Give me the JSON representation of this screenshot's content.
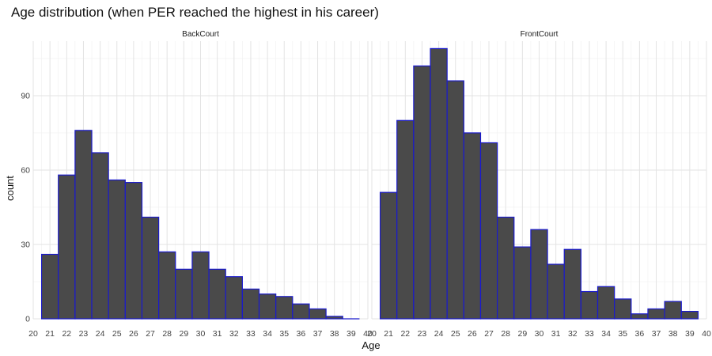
{
  "chart_data": {
    "type": "bar",
    "title": "Age distribution (when PER reached the highest in his career)",
    "xlabel": "Age",
    "ylabel": "count",
    "ylim": [
      0,
      112
    ],
    "yticks": [
      0,
      30,
      60,
      90
    ],
    "xlim": [
      20,
      40
    ],
    "xticks": [
      "20",
      "21",
      "22",
      "23",
      "24",
      "25",
      "26",
      "27",
      "28",
      "29",
      "30",
      "31",
      "32",
      "33",
      "34",
      "35",
      "36",
      "37",
      "38",
      "39",
      "40"
    ],
    "grid": true,
    "bar_fill": "#4a4a4a",
    "bar_outline": "#1a1acc",
    "panels": [
      {
        "name": "BackCourt",
        "bins": [
          {
            "x0": 20.5,
            "x1": 21.5,
            "count": 26
          },
          {
            "x0": 21.5,
            "x1": 22.5,
            "count": 58
          },
          {
            "x0": 22.5,
            "x1": 23.5,
            "count": 76
          },
          {
            "x0": 23.5,
            "x1": 24.5,
            "count": 67
          },
          {
            "x0": 24.5,
            "x1": 25.5,
            "count": 56
          },
          {
            "x0": 25.5,
            "x1": 26.5,
            "count": 55
          },
          {
            "x0": 26.5,
            "x1": 27.5,
            "count": 41
          },
          {
            "x0": 27.5,
            "x1": 28.5,
            "count": 27
          },
          {
            "x0": 28.5,
            "x1": 29.5,
            "count": 20
          },
          {
            "x0": 29.5,
            "x1": 30.5,
            "count": 27
          },
          {
            "x0": 30.5,
            "x1": 31.5,
            "count": 20
          },
          {
            "x0": 31.5,
            "x1": 32.5,
            "count": 17
          },
          {
            "x0": 32.5,
            "x1": 33.5,
            "count": 12
          },
          {
            "x0": 33.5,
            "x1": 34.5,
            "count": 10
          },
          {
            "x0": 34.5,
            "x1": 35.5,
            "count": 9
          },
          {
            "x0": 35.5,
            "x1": 36.5,
            "count": 6
          },
          {
            "x0": 36.5,
            "x1": 37.5,
            "count": 4
          },
          {
            "x0": 37.5,
            "x1": 38.5,
            "count": 1
          },
          {
            "x0": 38.5,
            "x1": 39.5,
            "count": 0
          }
        ]
      },
      {
        "name": "FrontCourt",
        "bins": [
          {
            "x0": 20.5,
            "x1": 21.5,
            "count": 51
          },
          {
            "x0": 21.5,
            "x1": 22.5,
            "count": 80
          },
          {
            "x0": 22.5,
            "x1": 23.5,
            "count": 102
          },
          {
            "x0": 23.5,
            "x1": 24.5,
            "count": 109
          },
          {
            "x0": 24.5,
            "x1": 25.5,
            "count": 96
          },
          {
            "x0": 25.5,
            "x1": 26.5,
            "count": 75
          },
          {
            "x0": 26.5,
            "x1": 27.5,
            "count": 71
          },
          {
            "x0": 27.5,
            "x1": 28.5,
            "count": 41
          },
          {
            "x0": 28.5,
            "x1": 29.5,
            "count": 29
          },
          {
            "x0": 29.5,
            "x1": 30.5,
            "count": 36
          },
          {
            "x0": 30.5,
            "x1": 31.5,
            "count": 22
          },
          {
            "x0": 31.5,
            "x1": 32.5,
            "count": 28
          },
          {
            "x0": 32.5,
            "x1": 33.5,
            "count": 11
          },
          {
            "x0": 33.5,
            "x1": 34.5,
            "count": 13
          },
          {
            "x0": 34.5,
            "x1": 35.5,
            "count": 8
          },
          {
            "x0": 35.5,
            "x1": 36.5,
            "count": 2
          },
          {
            "x0": 36.5,
            "x1": 37.5,
            "count": 4
          },
          {
            "x0": 37.5,
            "x1": 38.5,
            "count": 7
          },
          {
            "x0": 38.5,
            "x1": 39.5,
            "count": 3
          }
        ]
      }
    ]
  }
}
